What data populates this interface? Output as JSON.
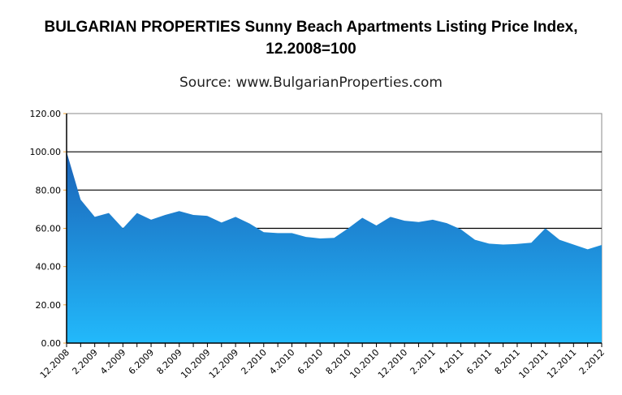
{
  "chart_data": {
    "type": "area",
    "title": "BULGARIAN PROPERTIES Sunny Beach Apartments Listing Price Index, 12.2008=100",
    "subtitle": "Source: www.BulgarianProperties.com",
    "xlabel": "",
    "ylabel": "",
    "ylim": [
      0,
      120
    ],
    "yticks": [
      "0.00",
      "20.00",
      "40.00",
      "60.00",
      "80.00",
      "100.00",
      "120.00"
    ],
    "xtick_labels": [
      "12.2008",
      "2.2009",
      "4.2009",
      "6.2009",
      "8.2009",
      "10.2009",
      "12.2009",
      "2.2010",
      "4.2010",
      "6.2010",
      "8.2010",
      "10.2010",
      "12.2010",
      "2.2011",
      "4.2011",
      "6.2011",
      "8.2011",
      "10.2011",
      "12.2011",
      "2.2012"
    ],
    "x": [
      "12.2008",
      "1.2009",
      "2.2009",
      "3.2009",
      "4.2009",
      "5.2009",
      "6.2009",
      "7.2009",
      "8.2009",
      "9.2009",
      "10.2009",
      "11.2009",
      "12.2009",
      "1.2010",
      "2.2010",
      "3.2010",
      "4.2010",
      "5.2010",
      "6.2010",
      "7.2010",
      "8.2010",
      "9.2010",
      "10.2010",
      "11.2010",
      "12.2010",
      "1.2011",
      "2.2011",
      "3.2011",
      "4.2011",
      "5.2011",
      "6.2011",
      "7.2011",
      "8.2011",
      "9.2011",
      "10.2011",
      "11.2011",
      "12.2011",
      "1.2012",
      "2.2012"
    ],
    "values": [
      100,
      75,
      66,
      68,
      60,
      68,
      64.5,
      67,
      69,
      67,
      66.5,
      63,
      66,
      62.5,
      58,
      57.5,
      57.5,
      55.5,
      54.7,
      55,
      60,
      65.5,
      61.5,
      66,
      64,
      63.3,
      64.5,
      62.7,
      59.5,
      54,
      52,
      51.5,
      51.8,
      52.5,
      60,
      54,
      51.5,
      49,
      51.3
    ],
    "grid": true,
    "legend": "none",
    "colors": {
      "fill_top": "#1b63b8",
      "fill_bottom": "#22b9fb",
      "tick_mark": "#f0a030"
    }
  }
}
